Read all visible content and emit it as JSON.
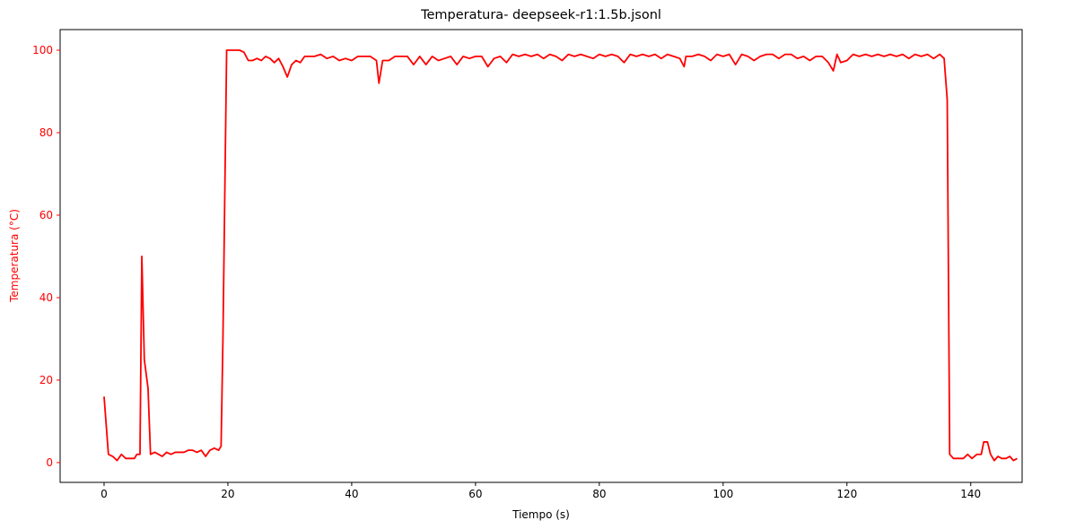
{
  "chart_data": {
    "type": "line",
    "title": "Temperatura- deepseek-r1:1.5b.jsonl",
    "xlabel": "Tiempo (s)",
    "ylabel": "Temperatura (°C)",
    "ylabel_color": "#ff0000",
    "xlim": [
      -7.1,
      148.3
    ],
    "ylim": [
      -4.8,
      105
    ],
    "xticks": [
      0,
      20,
      40,
      60,
      80,
      100,
      120,
      140
    ],
    "yticks": [
      0,
      20,
      40,
      60,
      80,
      100
    ],
    "grid": false,
    "x": [
      0,
      0.7,
      1.4,
      2.1,
      2.8,
      3.5,
      4.2,
      4.9,
      5.3,
      5.8,
      6.1,
      6.5,
      7.1,
      7.5,
      8.2,
      9.4,
      10.1,
      10.8,
      11.5,
      12.2,
      12.9,
      13.6,
      14.3,
      15.0,
      15.7,
      16.4,
      17.1,
      17.8,
      18.5,
      18.9,
      19.2,
      19.8,
      20.5,
      21.2,
      21.9,
      22.6,
      23.3,
      24,
      24.7,
      25.4,
      26.1,
      26.8,
      27.5,
      28.2,
      28.9,
      29.6,
      30.3,
      31,
      31.7,
      32.4,
      33,
      34,
      35,
      36,
      37,
      38,
      39,
      40,
      41,
      42,
      43,
      44,
      44.4,
      45,
      46,
      47,
      48,
      49,
      50,
      51,
      52,
      53,
      54,
      55,
      56,
      57,
      58,
      59,
      60,
      61,
      62,
      63,
      64,
      65,
      66,
      67,
      68,
      69,
      70,
      71,
      72,
      73,
      74,
      75,
      76,
      77,
      78,
      79,
      80,
      81,
      82,
      83,
      84,
      85,
      86,
      87,
      88,
      89,
      90,
      91,
      92,
      93,
      93.7,
      94,
      95,
      96,
      97,
      98,
      99,
      100,
      101,
      102,
      103,
      104,
      105,
      106,
      107,
      108,
      109,
      110,
      111,
      112,
      113,
      114,
      115,
      116,
      117,
      117.8,
      118.4,
      119,
      120,
      121,
      122,
      123,
      124,
      125,
      126,
      127,
      128,
      129,
      130,
      131,
      132,
      133,
      134,
      135,
      135.7,
      136.2,
      136.6,
      137.2,
      138,
      138.8,
      139.5,
      140.2,
      141,
      141.7,
      142.1,
      142.7,
      143.2,
      143.8,
      144.4,
      145,
      145.7,
      146.3,
      146.9,
      147.5
    ],
    "series": [
      {
        "color": "#ff0000",
        "values": [
          16,
          2,
          1.5,
          0.5,
          2,
          1,
          1,
          1,
          2,
          2,
          50,
          25,
          18,
          2,
          2.5,
          1.5,
          2.5,
          2,
          2.5,
          2.5,
          2.5,
          3,
          3,
          2.5,
          3,
          1.5,
          3,
          3.5,
          3,
          4,
          30,
          100,
          100,
          100,
          100,
          99.5,
          97.5,
          97.5,
          98,
          97.5,
          98.5,
          98,
          97,
          98,
          96,
          93.5,
          96.5,
          97.5,
          97,
          98.5,
          98.5,
          98.5,
          99,
          98,
          98.5,
          97.5,
          98,
          97.5,
          98.5,
          98.5,
          98.5,
          97.5,
          92,
          97.5,
          97.5,
          98.5,
          98.5,
          98.5,
          96.5,
          98.5,
          96.5,
          98.5,
          97.5,
          98,
          98.5,
          96.5,
          98.5,
          98,
          98.5,
          98.5,
          96,
          98,
          98.5,
          97,
          99,
          98.5,
          99,
          98.5,
          99,
          98,
          99,
          98.5,
          97.5,
          99,
          98.5,
          99,
          98.5,
          98,
          99,
          98.5,
          99,
          98.5,
          97,
          99,
          98.5,
          99,
          98.5,
          99,
          98,
          99,
          98.5,
          98,
          96,
          98.5,
          98.5,
          99,
          98.5,
          97.5,
          99,
          98.5,
          99,
          96.5,
          99,
          98.5,
          97.5,
          98.5,
          99,
          99,
          98,
          99,
          99,
          98,
          98.5,
          97.5,
          98.5,
          98.5,
          97,
          95,
          99,
          97,
          97.5,
          99,
          98.5,
          99,
          98.5,
          99,
          98.5,
          99,
          98.5,
          99,
          98,
          99,
          98.5,
          99,
          98,
          99,
          98,
          88,
          2,
          1,
          1,
          1,
          2,
          1,
          2,
          2,
          5,
          5,
          2,
          0.5,
          1.5,
          1,
          1,
          1.5,
          0.5,
          1
        ]
      }
    ]
  }
}
